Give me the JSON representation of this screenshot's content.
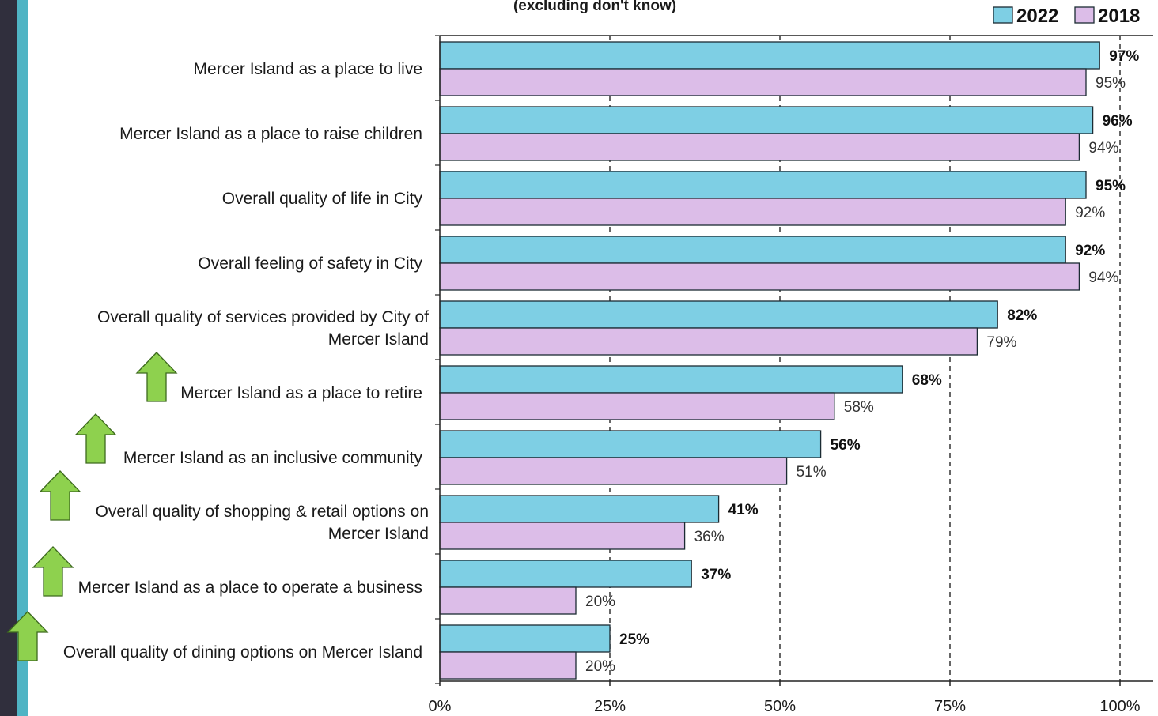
{
  "chart_data": {
    "type": "bar",
    "orientation": "horizontal",
    "subtitle": "(excluding don't know)",
    "categories": [
      [
        "Mercer Island as a place to live"
      ],
      [
        "Mercer Island as a place to raise children"
      ],
      [
        "Overall quality of life in City"
      ],
      [
        "Overall feeling of safety in City"
      ],
      [
        "Overall quality of services provided by City of",
        "Mercer Island"
      ],
      [
        "Mercer Island as a place to retire"
      ],
      [
        "Mercer Island as an inclusive community"
      ],
      [
        "Overall quality of shopping & retail options on",
        "Mercer Island"
      ],
      [
        "Mercer Island as a place to operate a business"
      ],
      [
        "Overall quality of dining options on Mercer Island"
      ]
    ],
    "series": [
      {
        "name": "2022",
        "color": "#7ecfe4",
        "values": [
          97,
          96,
          95,
          92,
          82,
          68,
          56,
          41,
          37,
          25
        ],
        "labels": [
          "97%",
          "96%",
          "95%",
          "92%",
          "82%",
          "68%",
          "56%",
          "41%",
          "37%",
          "25%"
        ]
      },
      {
        "name": "2018",
        "color": "#dcbde8",
        "values": [
          95,
          94,
          92,
          94,
          79,
          58,
          51,
          36,
          20,
          20
        ],
        "labels": [
          "95%",
          "94%",
          "92%",
          "94%",
          "79%",
          "58%",
          "51%",
          "36%",
          "20%",
          "20%"
        ]
      }
    ],
    "improved": [
      false,
      false,
      false,
      false,
      false,
      true,
      true,
      true,
      true,
      true
    ],
    "xlim": [
      0,
      100
    ],
    "xticks": [
      0,
      25,
      50,
      75,
      100
    ],
    "xtick_labels": [
      "0%",
      "25%",
      "50%",
      "75%",
      "100%"
    ],
    "grid": "vertical dashed at 50%, 75%, 100%",
    "legend_position": "top-right",
    "arrow_color": "#8ed14e"
  }
}
